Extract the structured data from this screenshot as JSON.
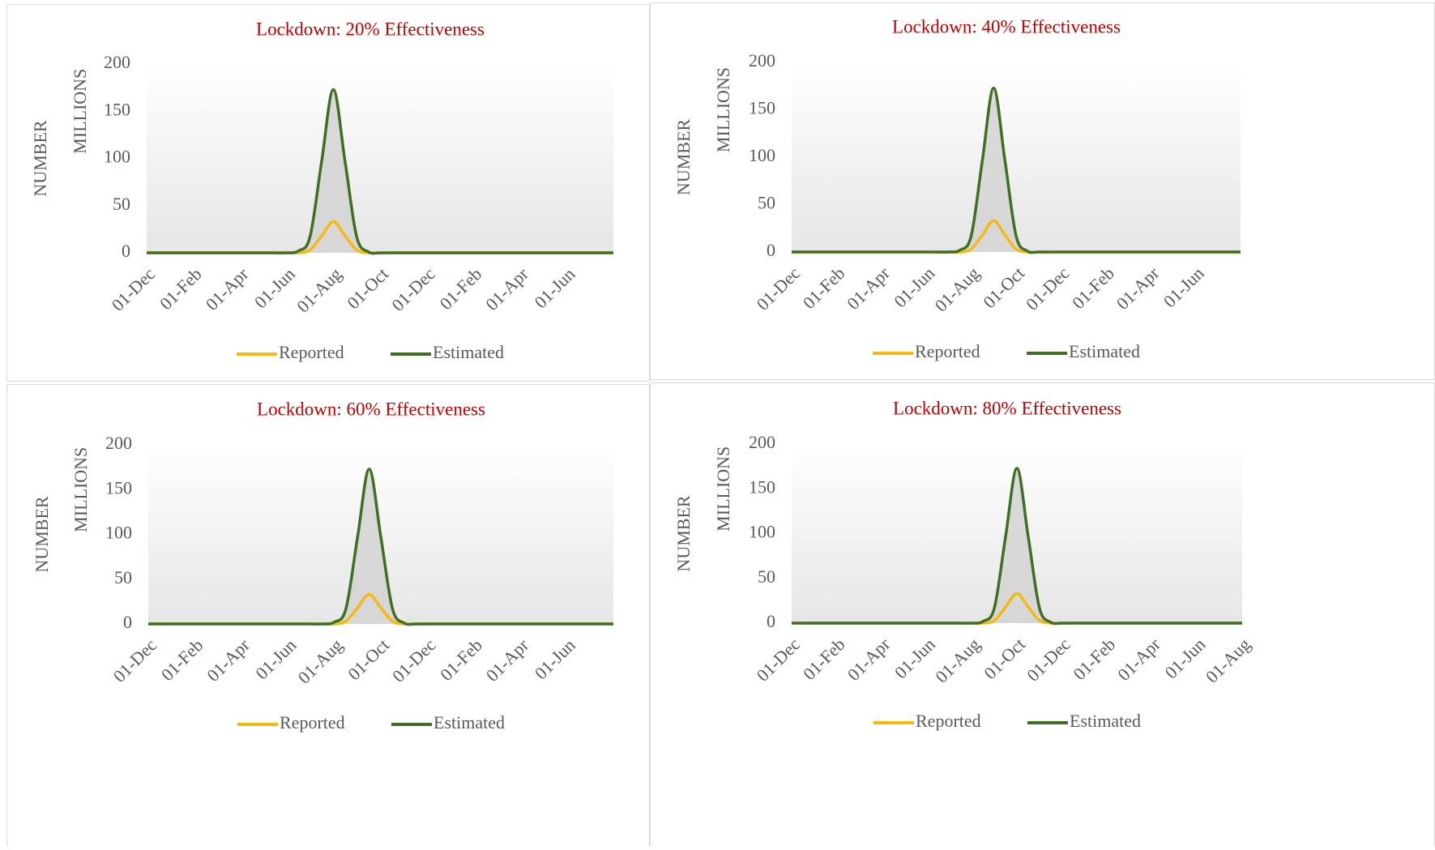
{
  "chart_data": [
    {
      "type": "line",
      "title": "Lockdown: 20% Effectiveness",
      "y_label": "NUMBER",
      "y_unit": "MILLIONS",
      "categories": [
        "01-Dec",
        null,
        null,
        null,
        "01-Feb",
        null,
        null,
        null,
        "01-Apr",
        null,
        null,
        null,
        "01-Jun",
        null,
        null,
        null,
        "01-Aug",
        null,
        null,
        null,
        "01-Oct",
        null,
        null,
        null,
        "01-Dec",
        null,
        null,
        null,
        "01-Feb",
        null,
        null,
        null,
        "01-Apr",
        null,
        null,
        null,
        "01-Jun",
        null,
        null,
        null,
        null
      ],
      "series": [
        {
          "name": "Reported",
          "color": "#f5b90f",
          "values": [
            0,
            0,
            0,
            0,
            0,
            0,
            0,
            0,
            0,
            0,
            0,
            0,
            0,
            0,
            3,
            18,
            33,
            18,
            3,
            0,
            0,
            0,
            0,
            0,
            0,
            0,
            0,
            0,
            0,
            0,
            0,
            0,
            0,
            0,
            0,
            0,
            0,
            0,
            0,
            0,
            0
          ]
        },
        {
          "name": "Estimated",
          "color": "#3f6f23",
          "fill": "#d4d4d4",
          "values": [
            0,
            0,
            0,
            0,
            0,
            0,
            0,
            0,
            0,
            0,
            0,
            0,
            0,
            2,
            17,
            97,
            173,
            97,
            17,
            1,
            0,
            0,
            0,
            0,
            0,
            0,
            0,
            0,
            0,
            0,
            0,
            0,
            0,
            0,
            0,
            0,
            0,
            0,
            0,
            0,
            0
          ]
        }
      ],
      "ylim": [
        0,
        200
      ],
      "yticks": [
        0,
        50,
        100,
        150,
        200
      ],
      "grid": false,
      "legend": "bottom"
    },
    {
      "type": "line",
      "title": "Lockdown: 40% Effectiveness",
      "y_label": "NUMBER",
      "y_unit": "MILLIONS",
      "categories": [
        "01-Dec",
        null,
        null,
        null,
        "01-Feb",
        null,
        null,
        null,
        "01-Apr",
        null,
        null,
        null,
        "01-Jun",
        null,
        null,
        null,
        "01-Aug",
        null,
        null,
        null,
        "01-Oct",
        null,
        null,
        null,
        "01-Dec",
        null,
        null,
        null,
        "01-Feb",
        null,
        null,
        null,
        "01-Apr",
        null,
        null,
        null,
        "01-Jun",
        null,
        null,
        null,
        null
      ],
      "series": [
        {
          "name": "Reported",
          "color": "#f5b90f",
          "values": [
            0,
            0,
            0,
            0,
            0,
            0,
            0,
            0,
            0,
            0,
            0,
            0,
            0,
            0,
            0,
            0,
            3,
            18,
            33,
            18,
            3,
            0,
            0,
            0,
            0,
            0,
            0,
            0,
            0,
            0,
            0,
            0,
            0,
            0,
            0,
            0,
            0,
            0,
            0,
            0,
            0
          ]
        },
        {
          "name": "Estimated",
          "color": "#3f6f23",
          "fill": "#d4d4d4",
          "values": [
            0,
            0,
            0,
            0,
            0,
            0,
            0,
            0,
            0,
            0,
            0,
            0,
            0,
            0,
            0,
            2,
            17,
            97,
            173,
            97,
            17,
            1,
            0,
            0,
            0,
            0,
            0,
            0,
            0,
            0,
            0,
            0,
            0,
            0,
            0,
            0,
            0,
            0,
            0,
            0,
            0
          ]
        }
      ],
      "ylim": [
        0,
        200
      ],
      "yticks": [
        0,
        50,
        100,
        150,
        200
      ],
      "grid": false,
      "legend": "bottom"
    },
    {
      "type": "line",
      "title": "Lockdown: 60% Effectiveness",
      "y_label": "NUMBER",
      "y_unit": "MILLIONS",
      "categories": [
        "01-Dec",
        null,
        null,
        null,
        "01-Feb",
        null,
        null,
        null,
        "01-Apr",
        null,
        null,
        null,
        "01-Jun",
        null,
        null,
        null,
        "01-Aug",
        null,
        null,
        null,
        "01-Oct",
        null,
        null,
        null,
        "01-Dec",
        null,
        null,
        null,
        "01-Feb",
        null,
        null,
        null,
        "01-Apr",
        null,
        null,
        null,
        "01-Jun",
        null,
        null,
        null,
        null
      ],
      "series": [
        {
          "name": "Reported",
          "color": "#f5b90f",
          "values": [
            0,
            0,
            0,
            0,
            0,
            0,
            0,
            0,
            0,
            0,
            0,
            0,
            0,
            0,
            0,
            0,
            0,
            3,
            18,
            33,
            18,
            3,
            0,
            0,
            0,
            0,
            0,
            0,
            0,
            0,
            0,
            0,
            0,
            0,
            0,
            0,
            0,
            0,
            0,
            0,
            0
          ]
        },
        {
          "name": "Estimated",
          "color": "#3f6f23",
          "fill": "#d4d4d4",
          "values": [
            0,
            0,
            0,
            0,
            0,
            0,
            0,
            0,
            0,
            0,
            0,
            0,
            0,
            0,
            0,
            0,
            2,
            17,
            97,
            173,
            97,
            17,
            1,
            0,
            0,
            0,
            0,
            0,
            0,
            0,
            0,
            0,
            0,
            0,
            0,
            0,
            0,
            0,
            0,
            0,
            0
          ]
        }
      ],
      "ylim": [
        0,
        200
      ],
      "yticks": [
        0,
        50,
        100,
        150,
        200
      ],
      "grid": false,
      "legend": "bottom"
    },
    {
      "type": "line",
      "title": "Lockdown: 80% Effectiveness",
      "y_label": "NUMBER",
      "y_unit": "MILLIONS",
      "categories": [
        "01-Dec",
        null,
        null,
        null,
        "01-Feb",
        null,
        null,
        null,
        "01-Apr",
        null,
        null,
        null,
        "01-Jun",
        null,
        null,
        null,
        "01-Aug",
        null,
        null,
        null,
        "01-Oct",
        null,
        null,
        null,
        "01-Dec",
        null,
        null,
        null,
        "01-Feb",
        null,
        null,
        null,
        "01-Apr",
        null,
        null,
        null,
        "01-Jun",
        null,
        null,
        null,
        "01-Aug"
      ],
      "series": [
        {
          "name": "Reported",
          "color": "#f5b90f",
          "values": [
            0,
            0,
            0,
            0,
            0,
            0,
            0,
            0,
            0,
            0,
            0,
            0,
            0,
            0,
            0,
            0,
            0,
            0,
            3,
            18,
            33,
            18,
            3,
            0,
            0,
            0,
            0,
            0,
            0,
            0,
            0,
            0,
            0,
            0,
            0,
            0,
            0,
            0,
            0,
            0,
            0
          ]
        },
        {
          "name": "Estimated",
          "color": "#3f6f23",
          "fill": "#d4d4d4",
          "values": [
            0,
            0,
            0,
            0,
            0,
            0,
            0,
            0,
            0,
            0,
            0,
            0,
            0,
            0,
            0,
            0,
            0,
            2,
            17,
            97,
            173,
            97,
            17,
            1,
            0,
            0,
            0,
            0,
            0,
            0,
            0,
            0,
            0,
            0,
            0,
            0,
            0,
            0,
            0,
            0,
            0
          ]
        }
      ],
      "ylim": [
        0,
        200
      ],
      "yticks": [
        0,
        50,
        100,
        150,
        200
      ],
      "grid": false,
      "legend": "bottom"
    }
  ]
}
